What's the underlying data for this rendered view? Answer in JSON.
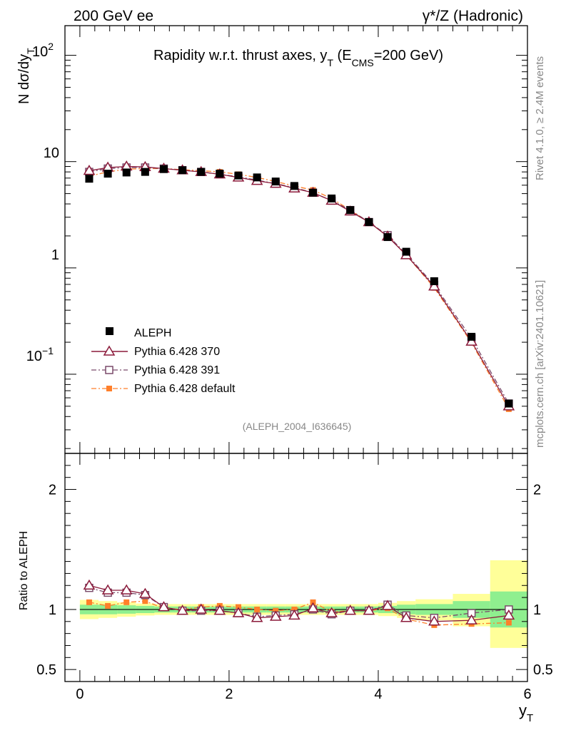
{
  "header": {
    "left": "200 GeV ee",
    "right": "γ*/Z (Hadronic)"
  },
  "side_labels": {
    "rivet": "Rivet 4.1.0, ≥ 2.4M events",
    "mcplots": "mcplots.cern.ch [arXiv:2401.10621]"
  },
  "chart_data": [
    {
      "type": "scatter",
      "panel": "main",
      "title": "Rapidity w.r.t. thrust axes, y_T (E_CMS=200 GeV)",
      "title_parts": {
        "main": "Rapidity w.r.t. thrust axes, y",
        "sub1": "T",
        "mid": " (E",
        "sub2": "CMS",
        "tail": "=200 GeV)"
      },
      "ylabel": "N  dσ/dy_T",
      "ylabel_parts": {
        "main": "N  dσ/dy",
        "sub": "T"
      },
      "yscale": "log",
      "ylim": [
        0.018,
        190
      ],
      "xlim": [
        -0.2,
        6.0
      ],
      "ytick_labels": [
        {
          "value": 0.1,
          "base": "10",
          "exp": "−1"
        },
        {
          "value": 1,
          "base": "1",
          "exp": ""
        },
        {
          "value": 10,
          "base": "10",
          "exp": ""
        },
        {
          "value": 100,
          "base": "10",
          "exp": "2"
        }
      ],
      "watermark": "(ALEPH_2004_I636645)",
      "legend": [
        "ALEPH",
        "Pythia 6.428 370",
        "Pythia 6.428 391",
        "Pythia 6.428 default"
      ],
      "x": [
        0.125,
        0.375,
        0.625,
        0.875,
        1.125,
        1.375,
        1.625,
        1.875,
        2.125,
        2.375,
        2.625,
        2.875,
        3.125,
        3.375,
        3.625,
        3.875,
        4.125,
        4.375,
        4.75,
        5.25,
        5.75
      ],
      "series": [
        {
          "name": "ALEPH",
          "color": "#000000",
          "marker": "square-filled",
          "values": [
            6.9,
            7.7,
            7.9,
            8.0,
            8.5,
            8.3,
            8.0,
            7.7,
            7.4,
            7.1,
            6.5,
            5.9,
            5.1,
            4.5,
            3.5,
            2.7,
            1.95,
            1.42,
            0.75,
            0.225,
            0.053
          ]
        },
        {
          "name": "Pythia 6.428 370",
          "color": "#8b1a3a",
          "marker": "triangle-open",
          "line": "solid",
          "values": [
            8.2,
            8.8,
            9.0,
            8.9,
            8.6,
            8.3,
            8.0,
            7.6,
            7.1,
            6.6,
            6.2,
            5.6,
            5.1,
            4.3,
            3.4,
            2.7,
            1.98,
            1.32,
            0.67,
            0.203,
            0.05
          ]
        },
        {
          "name": "Pythia 6.428 391",
          "color": "#7a4a6a",
          "marker": "square-open",
          "line": "dashdot",
          "values": [
            8.0,
            8.6,
            8.8,
            8.8,
            8.6,
            8.3,
            8.0,
            7.6,
            7.2,
            6.7,
            6.2,
            5.7,
            5.1,
            4.3,
            3.5,
            2.7,
            2.03,
            1.35,
            0.69,
            0.218,
            0.053
          ]
        },
        {
          "name": "Pythia 6.428 default",
          "color": "#ff7f2a",
          "marker": "square-filled-small",
          "line": "dashdot",
          "values": [
            7.3,
            8.0,
            8.5,
            8.6,
            8.6,
            8.4,
            8.2,
            8.0,
            7.6,
            7.1,
            6.5,
            5.9,
            5.4,
            4.5,
            3.5,
            2.7,
            1.99,
            1.32,
            0.65,
            0.198,
            0.047
          ]
        }
      ]
    },
    {
      "type": "line",
      "panel": "ratio",
      "ylabel": "Ratio to ALEPH",
      "xlabel": "y_T",
      "xlabel_parts": {
        "main": "y",
        "sub": "T"
      },
      "ylim": [
        0.4,
        2.3
      ],
      "xlim": [
        -0.2,
        6.0
      ],
      "xticks": [
        0,
        2,
        4,
        6
      ],
      "yticks": [
        0.5,
        1,
        2
      ],
      "bands": {
        "edges": [
          0.0,
          0.25,
          0.5,
          0.75,
          1.0,
          1.25,
          1.5,
          1.75,
          2.0,
          2.25,
          2.5,
          2.75,
          3.0,
          3.25,
          3.5,
          3.75,
          4.0,
          4.25,
          4.5,
          5.0,
          5.5,
          6.0
        ],
        "stat_lo": [
          0.96,
          0.96,
          0.965,
          0.97,
          0.975,
          0.975,
          0.975,
          0.975,
          0.975,
          0.975,
          0.975,
          0.975,
          0.975,
          0.975,
          0.975,
          0.975,
          0.97,
          0.96,
          0.955,
          0.93,
          0.85
        ],
        "stat_hi": [
          1.04,
          1.04,
          1.035,
          1.03,
          1.025,
          1.025,
          1.025,
          1.025,
          1.025,
          1.025,
          1.025,
          1.025,
          1.025,
          1.025,
          1.025,
          1.025,
          1.03,
          1.04,
          1.045,
          1.07,
          1.15
        ],
        "tot_lo": [
          0.92,
          0.93,
          0.94,
          0.95,
          0.955,
          0.955,
          0.955,
          0.955,
          0.955,
          0.955,
          0.955,
          0.955,
          0.955,
          0.955,
          0.955,
          0.955,
          0.945,
          0.93,
          0.91,
          0.86,
          0.68
        ],
        "tot_hi": [
          1.08,
          1.07,
          1.06,
          1.05,
          1.045,
          1.045,
          1.045,
          1.045,
          1.045,
          1.045,
          1.045,
          1.045,
          1.045,
          1.045,
          1.045,
          1.045,
          1.055,
          1.07,
          1.085,
          1.13,
          1.41
        ],
        "stat_color": "#8fef8f",
        "tot_color": "#ffff99"
      },
      "series": [
        {
          "name": "Pythia 6.428 370",
          "color": "#8b1a3a",
          "marker": "triangle-open",
          "line": "solid",
          "values": [
            1.2,
            1.16,
            1.16,
            1.13,
            1.02,
            0.99,
            1.0,
            0.99,
            0.97,
            0.93,
            0.94,
            0.95,
            1.01,
            0.97,
            0.99,
            0.99,
            1.03,
            0.93,
            0.9,
            0.91,
            0.95
          ]
        },
        {
          "name": "Pythia 6.428 391",
          "color": "#7a4a6a",
          "marker": "square-open",
          "line": "dashdot",
          "values": [
            1.18,
            1.14,
            1.14,
            1.12,
            1.02,
            0.99,
            0.99,
            0.99,
            0.97,
            0.94,
            0.95,
            0.96,
            1.0,
            0.96,
            0.99,
            0.99,
            1.04,
            0.95,
            0.93,
            0.97,
            1.0
          ]
        },
        {
          "name": "Pythia 6.428 default",
          "color": "#ff7f2a",
          "marker": "square-filled-small",
          "line": "dashdot",
          "values": [
            1.06,
            1.03,
            1.06,
            1.07,
            1.01,
            1.0,
            1.02,
            1.03,
            1.02,
            1.0,
            0.99,
            1.0,
            1.06,
            0.98,
            0.99,
            0.99,
            1.01,
            0.92,
            0.87,
            0.88,
            0.89
          ]
        }
      ]
    }
  ]
}
